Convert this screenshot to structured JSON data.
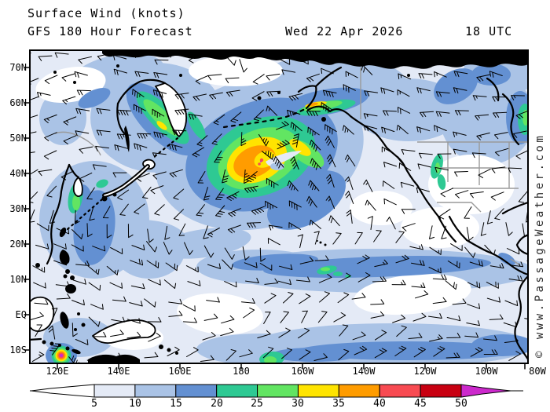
{
  "header": {
    "product": "Surface Wind (knots)",
    "model_run": "GFS 180 Hour Forecast",
    "valid_date": "Wed 22 Apr 2026",
    "valid_time": "18 UTC"
  },
  "watermark": {
    "text": "© www.PassageWeather.com"
  },
  "axes": {
    "lat_labels": [
      "70N",
      "60N",
      "50N",
      "40N",
      "30N",
      "20N",
      "10N",
      "EQ",
      "10S"
    ],
    "lon_labels": [
      "120E",
      "140E",
      "160E",
      "180",
      "160W",
      "140W",
      "120W",
      "100W",
      "80W"
    ]
  },
  "legend": {
    "unit": "knots",
    "tick_labels": [
      "5",
      "10",
      "15",
      "20",
      "25",
      "30",
      "35",
      "40",
      "45",
      "50"
    ]
  },
  "palette": {
    "land_outline": "#000000",
    "political_boundary": "#9a9a9a",
    "calm": "#ffffff",
    "kt_05_10": "#e4eaf6",
    "kt_10_15": "#aac3e6",
    "kt_15_20": "#6390d2",
    "kt_20_25": "#2ec993",
    "kt_25_30": "#62e562",
    "kt_30_35": "#ffe400",
    "kt_35_40": "#ff9c00",
    "kt_40_45": "#f84b52",
    "kt_45_50": "#c80011",
    "kt_50_plus": "#cc29cc"
  }
}
